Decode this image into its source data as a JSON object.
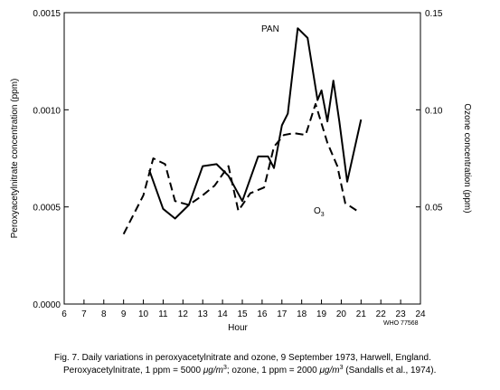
{
  "chart_data": {
    "type": "line",
    "xlabel": "Hour",
    "ylabel_left": "Peroxyacetylnitrate concentration (ppm)",
    "ylabel_right": "Ozone concentration (ppm)",
    "xlim": [
      6,
      24
    ],
    "ylim_left": [
      0,
      0.0015
    ],
    "ylim_right": [
      0,
      0.15
    ],
    "x_ticks": [
      6,
      7,
      8,
      9,
      10,
      11,
      12,
      13,
      14,
      15,
      16,
      17,
      18,
      19,
      20,
      21,
      22,
      23,
      24
    ],
    "y_ticks_left": [
      "0.0000",
      "0.0005",
      "0.0010",
      "0.0015"
    ],
    "y_ticks_right": [
      "0.05",
      "0.10",
      "0.15"
    ],
    "grid": false,
    "series": [
      {
        "name": "PAN",
        "axis": "left",
        "style": "solid",
        "x": [
          10.3,
          11.0,
          11.6,
          12.3,
          13.0,
          13.7,
          14.3,
          15.0,
          15.8,
          16.3,
          16.6,
          17.0,
          17.3,
          17.8,
          18.3,
          18.8,
          19.0,
          19.3,
          19.6,
          19.9,
          20.3,
          21.0
        ],
        "y": [
          0.00069,
          0.00049,
          0.00044,
          0.00051,
          0.00071,
          0.00072,
          0.00066,
          0.00053,
          0.00076,
          0.00076,
          0.0007,
          0.00092,
          0.00098,
          0.00142,
          0.00137,
          0.00105,
          0.0011,
          0.00094,
          0.00115,
          0.00094,
          0.00063,
          0.00095
        ]
      },
      {
        "name": "O3",
        "axis": "right",
        "style": "dashed",
        "x": [
          9.0,
          10.0,
          10.5,
          11.1,
          11.6,
          12.3,
          13.0,
          13.6,
          14.3,
          14.8,
          15.4,
          16.1,
          16.6,
          17.1,
          17.6,
          18.2,
          18.7,
          19.3,
          19.8,
          20.2,
          20.8
        ],
        "y": [
          0.036,
          0.056,
          0.075,
          0.072,
          0.053,
          0.051,
          0.056,
          0.061,
          0.071,
          0.048,
          0.057,
          0.06,
          0.081,
          0.087,
          0.088,
          0.087,
          0.103,
          0.083,
          0.071,
          0.052,
          0.048
        ]
      }
    ],
    "annotations": [
      {
        "text": "PAN",
        "x": 17.4,
        "y": 0.00142
      },
      {
        "text": "O",
        "subscript": "3",
        "x": 19.7,
        "y": 0.00047
      }
    ]
  },
  "figure": {
    "source_ref": "WHO 77568",
    "caption_line1": "Fig. 7. Daily variations in peroxyacetylnitrate and ozone, 9 September 1973, Harwell, England.",
    "caption_line2_part1": "Peroxyacetylnitrate, 1 ppm = 5000 ",
    "caption_line2_unit1": "μg/m",
    "caption_line2_part2": "; ozone, 1 ppm = 2000 ",
    "caption_line2_unit2": "μg/m",
    "caption_line2_part3": " (Sandalls et al., 1974).",
    "caption_exponent": "3"
  }
}
